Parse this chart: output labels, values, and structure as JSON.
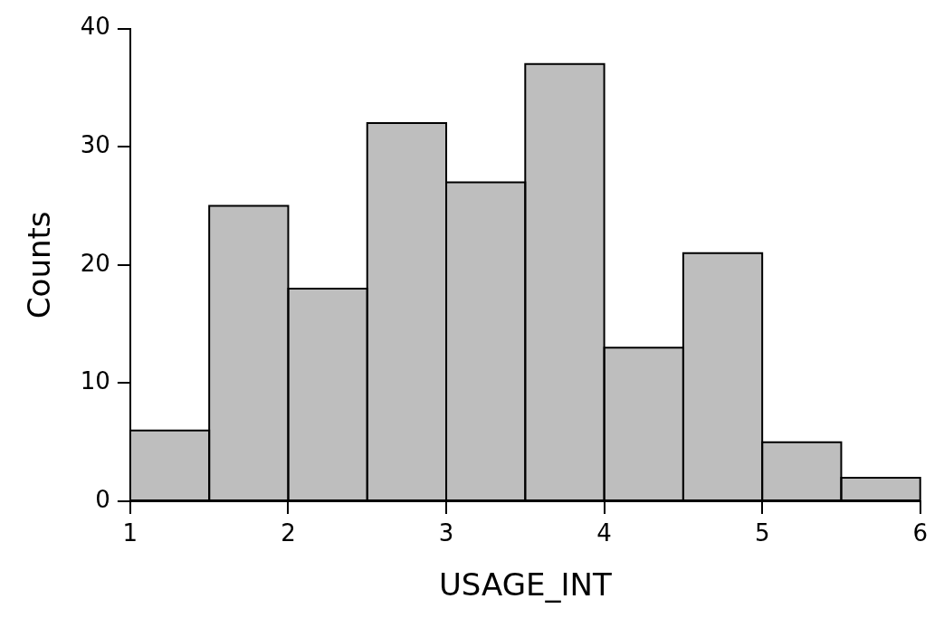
{
  "chart_data": {
    "type": "histogram",
    "xlabel": "USAGE_INT",
    "ylabel": "Counts",
    "bins": [
      1,
      1.5,
      2,
      2.5,
      3,
      3.5,
      4,
      4.5,
      5,
      5.5,
      6
    ],
    "values": [
      6,
      25,
      18,
      32,
      27,
      37,
      13,
      21,
      5,
      2
    ],
    "color": "#bebebe",
    "xlim": [
      1,
      6
    ],
    "xticks": [
      1,
      2,
      3,
      4,
      5,
      6
    ],
    "ylim": [
      0,
      40
    ],
    "yticks": [
      0,
      10,
      20,
      30,
      40
    ],
    "grid": false,
    "legend": false
  }
}
